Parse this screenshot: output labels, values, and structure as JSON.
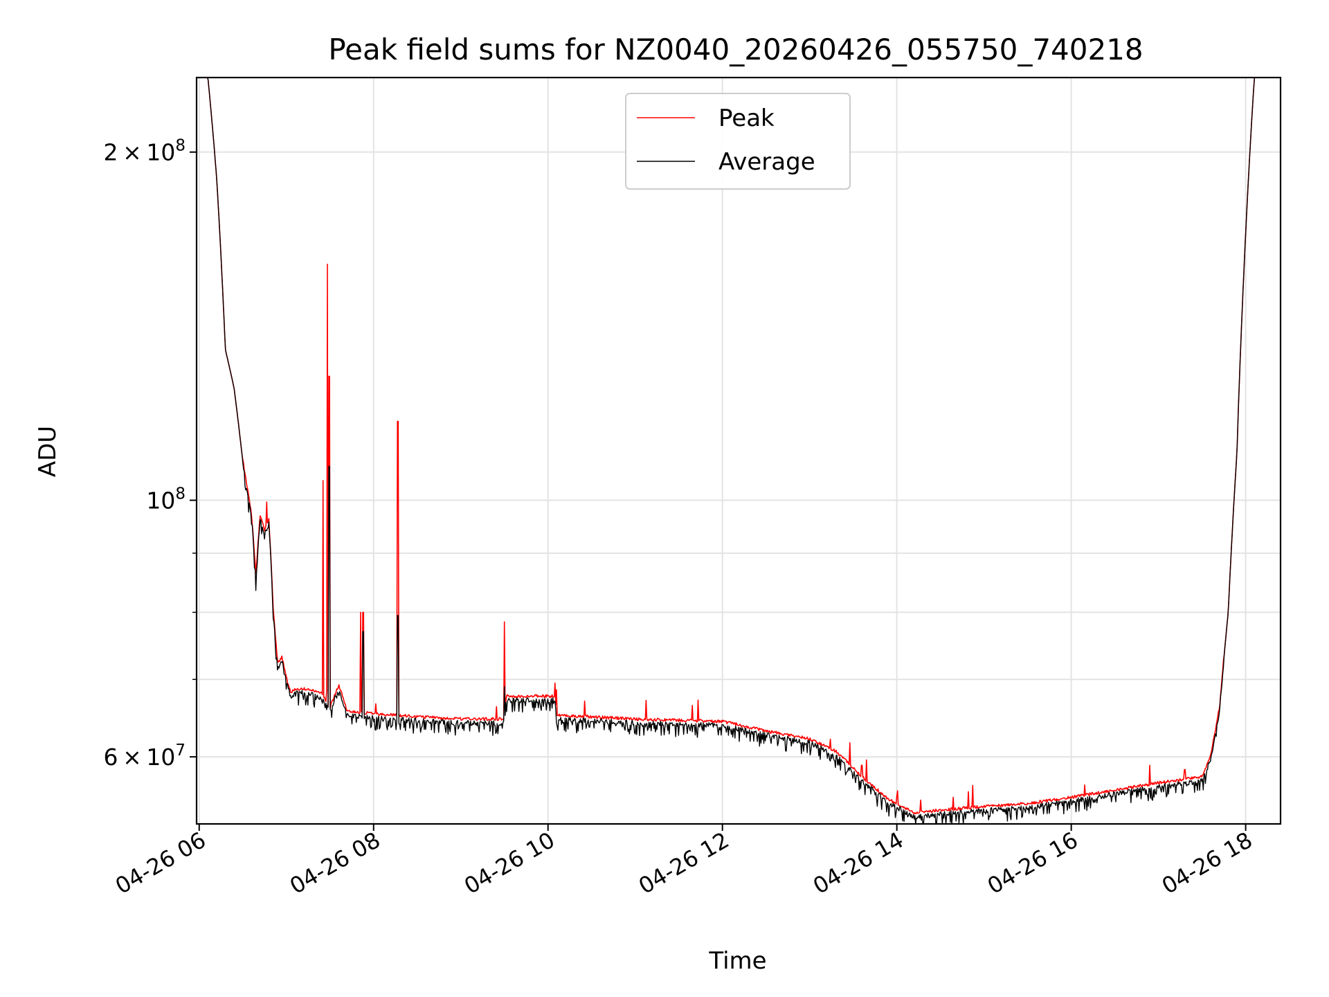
{
  "chart_data": {
    "type": "line",
    "title": "Peak field sums for NZ0040_20260426_055750_740218",
    "xlabel": "Time",
    "ylabel": "ADU",
    "yscale": "log",
    "xlim_hours": [
      5.97,
      18.4
    ],
    "ylim": [
      52500000,
      232000000
    ],
    "grid": true,
    "legend_position": "top-center",
    "x_ticks": [
      {
        "value": 6,
        "label": "04-26 06"
      },
      {
        "value": 8,
        "label": "04-26 08"
      },
      {
        "value": 10,
        "label": "04-26 10"
      },
      {
        "value": 12,
        "label": "04-26 12"
      },
      {
        "value": 14,
        "label": "04-26 14"
      },
      {
        "value": 16,
        "label": "04-26 16"
      },
      {
        "value": 18,
        "label": "04-26 18"
      }
    ],
    "y_ticks": [
      {
        "value": 60000000,
        "mant": "6",
        "exp": "7",
        "label": "6 × 10^7"
      },
      {
        "value": 100000000,
        "mant": "",
        "exp": "8",
        "label": "10^8"
      },
      {
        "value": 200000000,
        "mant": "2",
        "exp": "8",
        "label": "2 × 10^8"
      }
    ],
    "y_minor_ticks": [
      70000000,
      80000000,
      90000000
    ],
    "series": [
      {
        "name": "Peak",
        "color": "#ff0000"
      },
      {
        "name": "Average",
        "color": "#000000"
      }
    ],
    "baseline_hours": [
      5.97,
      6.1,
      6.2,
      6.3,
      6.4,
      6.5,
      6.6,
      6.65,
      6.7,
      6.75,
      6.8,
      6.85,
      6.9,
      6.95,
      7.0,
      7.05,
      7.1,
      7.2,
      7.4,
      7.5,
      7.6,
      7.7,
      8.0,
      8.5,
      9.0,
      9.5,
      9.52,
      10.0,
      10.08,
      10.1,
      11.0,
      12.0,
      12.5,
      13.0,
      13.3,
      13.6,
      13.9,
      14.2,
      14.5,
      15.0,
      15.5,
      16.0,
      16.5,
      17.0,
      17.3,
      17.5,
      17.6,
      17.7,
      17.8,
      17.9,
      18.0,
      18.1,
      18.4
    ],
    "baseline_adu": [
      232000000,
      232000000,
      190000000,
      135000000,
      125000000,
      108000000,
      97000000,
      86000000,
      97000000,
      94000000,
      96000000,
      80000000,
      72000000,
      73000000,
      70000000,
      68000000,
      68500000,
      68500000,
      68000000,
      66000000,
      69000000,
      65500000,
      65200000,
      64800000,
      64500000,
      64500000,
      67500000,
      67500000,
      67500000,
      65000000,
      64500000,
      64200000,
      63000000,
      62000000,
      60500000,
      57500000,
      55000000,
      53500000,
      53800000,
      54200000,
      54500000,
      55200000,
      56000000,
      56800000,
      57200000,
      57500000,
      60000000,
      66000000,
      80000000,
      110000000,
      170000000,
      232000000,
      232000000
    ],
    "peak_spikes": [
      {
        "hour": 7.42,
        "adu": 104000000
      },
      {
        "hour": 7.47,
        "adu": 160000000
      },
      {
        "hour": 7.49,
        "adu": 128000000
      },
      {
        "hour": 7.85,
        "adu": 80000000
      },
      {
        "hour": 7.88,
        "adu": 80000000
      },
      {
        "hour": 8.28,
        "adu": 117000000
      },
      {
        "hour": 9.5,
        "adu": 78500000
      },
      {
        "hour": 10.08,
        "adu": 69500000
      },
      {
        "hour": 13.6,
        "adu": 59000000
      },
      {
        "hour": 14.0,
        "adu": 55500000
      },
      {
        "hour": 16.9,
        "adu": 59000000
      },
      {
        "hour": 17.3,
        "adu": 58500000
      }
    ],
    "average_spikes": [
      {
        "hour": 7.49,
        "adu": 107000000
      },
      {
        "hour": 7.88,
        "adu": 77000000
      },
      {
        "hour": 8.28,
        "adu": 79500000
      },
      {
        "hour": 9.5,
        "adu": 69000000
      }
    ]
  }
}
